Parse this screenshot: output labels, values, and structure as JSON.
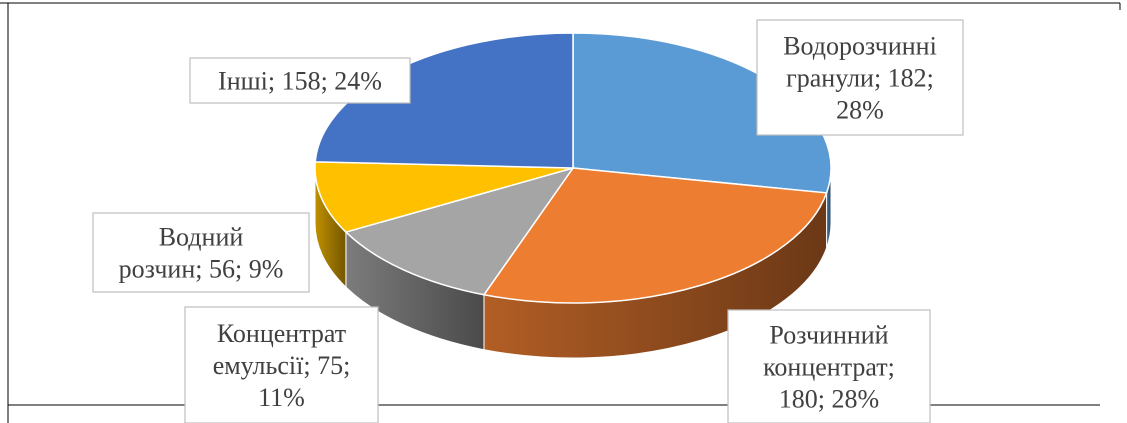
{
  "chart_data": {
    "type": "pie3d",
    "categories": [
      "Водорозчинні гранули",
      "Розчинний концентрат",
      "Концентрат емульсії",
      "Водний розчин",
      "Інші"
    ],
    "values": [
      182,
      180,
      75,
      56,
      158
    ],
    "value_labels": [
      "Водорозчинні гранули; 182; 28%",
      "Розчинний концентрат; 180; 28%",
      "Концентрат емульсії; 75; 11%",
      "Водний розчин; 56; 9%",
      "Інші; 158; 24%"
    ],
    "colors": [
      "#5b9bd5",
      "#ed7d31",
      "#a5a5a5",
      "#ffc000",
      "#4472c4"
    ]
  }
}
